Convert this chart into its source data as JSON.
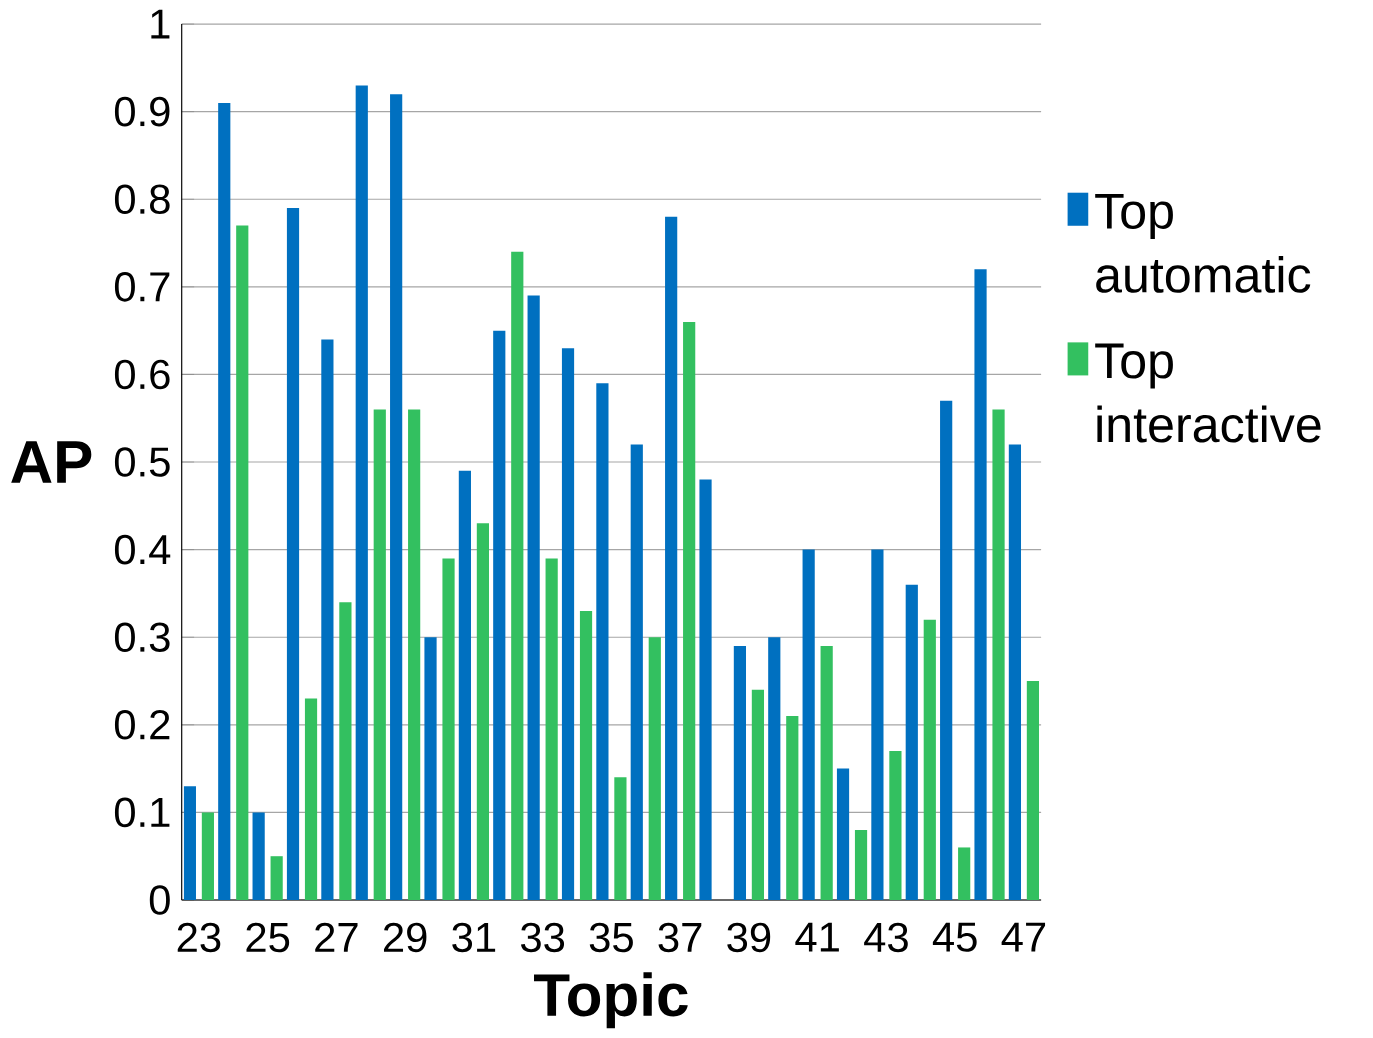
{
  "chart_data": {
    "type": "bar",
    "xlabel": "Topic",
    "ylabel": "AP",
    "categories": [
      "23",
      null,
      "25",
      null,
      "27",
      null,
      "29",
      null,
      "31",
      null,
      "33",
      null,
      "35",
      null,
      "37",
      null,
      "39",
      null,
      "41",
      null,
      "43",
      null,
      "45",
      null,
      "47"
    ],
    "series": [
      {
        "name": "Top automatic",
        "color": "#0070c0",
        "values": [
          0.13,
          0.91,
          0.1,
          0.79,
          0.64,
          0.93,
          0.92,
          0.3,
          0.49,
          0.65,
          0.69,
          0.63,
          0.59,
          0.52,
          0.78,
          0.48,
          0.29,
          0.3,
          0.4,
          0.15,
          0.4,
          0.36,
          0.57,
          0.72,
          0.52
        ]
      },
      {
        "name": "Top interactive",
        "color": "#33c060",
        "values": [
          0.1,
          0.77,
          0.05,
          0.23,
          0.34,
          0.56,
          0.56,
          0.39,
          0.43,
          0.74,
          0.39,
          0.33,
          0.14,
          0.3,
          0.66,
          0,
          0.24,
          0.21,
          0.29,
          0.08,
          0.17,
          0.32,
          0.06,
          0.56,
          0.25
        ]
      }
    ],
    "ylim": [
      0,
      1
    ],
    "yticks": [
      0,
      0.1,
      0.2,
      0.3,
      0.4,
      0.5,
      0.6,
      0.7,
      0.8,
      0.9,
      1
    ],
    "grid": "y",
    "legend": "right"
  }
}
